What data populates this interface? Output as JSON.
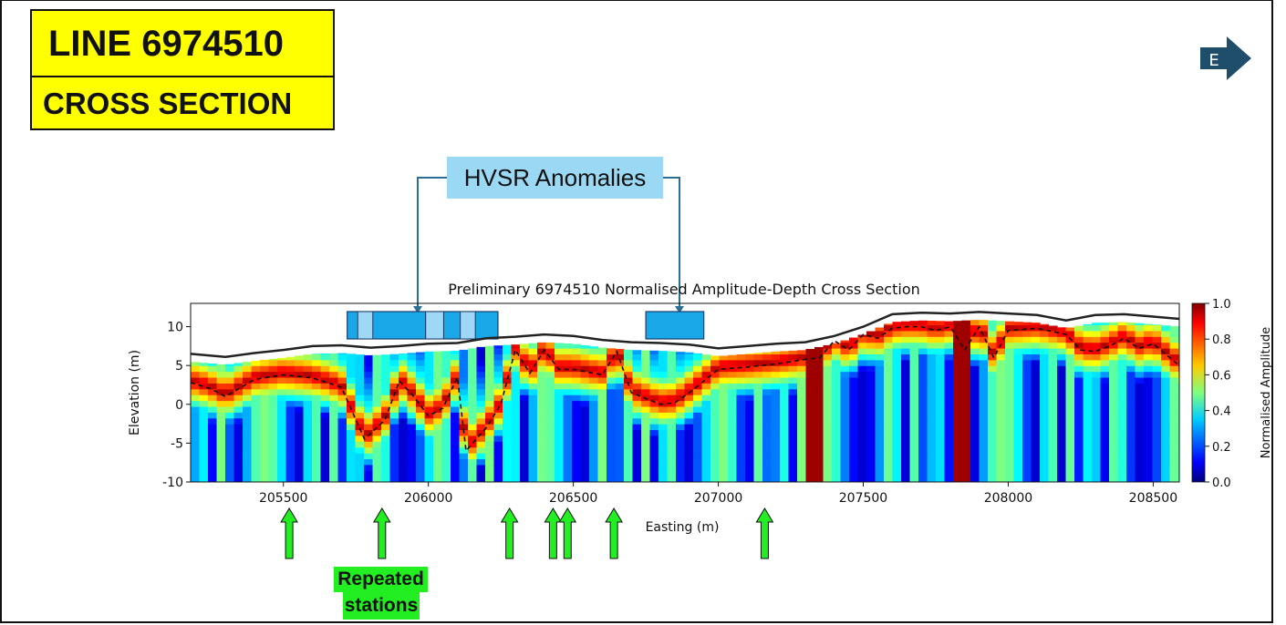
{
  "slide": {
    "title_line": "LINE 6974510",
    "title_sub": "CROSS SECTION",
    "direction_label": "E",
    "anomaly_label": "HVSR Anomalies",
    "repeated_line1": "Repeated",
    "repeated_line2": "stations"
  },
  "colors": {
    "title_bg": "#ffff00",
    "anomaly_box": "#9ad8f4",
    "anomaly_bar": "#1aa7e8",
    "arrow_green": "#22ee22",
    "direction_arrow": "#1f4e6b"
  },
  "chart_data": {
    "type": "heatmap",
    "title": "Preliminary 6974510 Normalised Amplitude-Depth Cross Section",
    "xlabel": "Easting (m)",
    "ylabel": "Elevation (m)",
    "colorbar_label": "Normalised Amplitude",
    "colormap": "jet",
    "xlim": [
      205180,
      208590
    ],
    "ylim": [
      -10,
      13
    ],
    "x_ticks": [
      205500,
      206000,
      206500,
      207000,
      207500,
      208000,
      208500
    ],
    "y_ticks": [
      -10,
      -5,
      0,
      5,
      10
    ],
    "colorbar_ticks": [
      "0.0",
      "0.2",
      "0.4",
      "0.6",
      "0.8",
      "1.0"
    ],
    "topography_line": {
      "x": [
        205180,
        205300,
        205400,
        205500,
        205600,
        205700,
        205800,
        205900,
        206000,
        206100,
        206200,
        206300,
        206400,
        206500,
        206600,
        206700,
        206800,
        206900,
        207000,
        207100,
        207200,
        207300,
        207400,
        207500,
        207600,
        207700,
        207800,
        207900,
        208000,
        208100,
        208200,
        208300,
        208400,
        208500,
        208590
      ],
      "elevation": [
        6.5,
        6.1,
        6.6,
        7.0,
        7.5,
        7.6,
        7.3,
        7.5,
        7.8,
        7.9,
        8.5,
        8.7,
        9.0,
        8.8,
        8.3,
        8.0,
        7.9,
        7.7,
        7.2,
        7.5,
        7.8,
        8.0,
        8.8,
        10.0,
        11.6,
        11.8,
        11.7,
        11.9,
        11.7,
        11.5,
        10.8,
        11.5,
        11.6,
        11.3,
        11.0
      ]
    },
    "boundary_line": {
      "x": [
        205180,
        205250,
        205300,
        205400,
        205500,
        205600,
        205700,
        205780,
        205850,
        205900,
        205950,
        206000,
        206050,
        206100,
        206130,
        206200,
        206250,
        206300,
        206350,
        206400,
        206450,
        206500,
        206600,
        206650,
        206700,
        206800,
        206850,
        206900,
        207000,
        207100,
        207200,
        207300,
        207350,
        207400,
        207450,
        207500,
        207550,
        207600,
        207650,
        207700,
        207750,
        207800,
        207850,
        207900,
        207950,
        208000,
        208100,
        208200,
        208250,
        208300,
        208350,
        208400,
        208450,
        208500,
        208590
      ],
      "elevation": [
        2.8,
        2.0,
        1.0,
        3.2,
        3.8,
        3.4,
        2.2,
        -4.5,
        -2.0,
        3.0,
        1.0,
        -1.5,
        -0.5,
        3.5,
        -6.0,
        -3.0,
        0.0,
        7.0,
        4.0,
        7.0,
        4.5,
        4.5,
        3.8,
        6.8,
        1.5,
        0.0,
        0.2,
        1.5,
        4.5,
        4.8,
        5.2,
        5.8,
        6.0,
        8.2,
        7.0,
        9.0,
        8.5,
        9.8,
        10.0,
        10.0,
        9.5,
        10.0,
        7.0,
        10.0,
        6.0,
        9.5,
        9.8,
        9.0,
        7.0,
        6.8,
        7.5,
        8.5,
        7.2,
        7.8,
        5.0
      ]
    },
    "anomaly_intervals": [
      [
        205720,
        206240
      ],
      [
        206750,
        206950
      ]
    ],
    "repeated_stations": [
      205520,
      205840,
      206280,
      206430,
      206480,
      206640,
      207160
    ]
  }
}
